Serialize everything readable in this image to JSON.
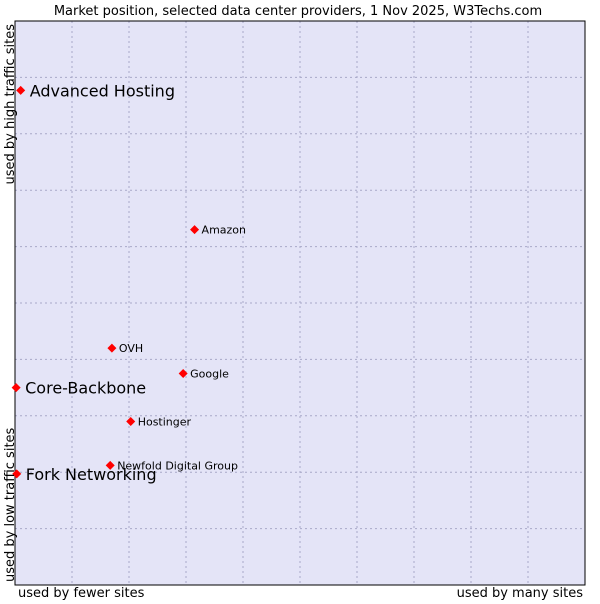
{
  "chart_data": {
    "type": "scatter",
    "title": "Market position, selected data center providers, 1 Nov 2025, W3Techs.com",
    "xlabel_left": "used by fewer sites",
    "xlabel_right": "used by many sites",
    "ylabel_bottom": "used by low traffic sites",
    "ylabel_top": "used by high traffic sites",
    "xlim": [
      0,
      100
    ],
    "ylim": [
      0,
      100
    ],
    "grid": true,
    "points": [
      {
        "label": "Advanced Hosting",
        "x": 1.0,
        "y": 87.7,
        "highlight": true
      },
      {
        "label": "Amazon",
        "x": 31.5,
        "y": 63.0,
        "highlight": false
      },
      {
        "label": "OVH",
        "x": 17.0,
        "y": 42.0,
        "highlight": false
      },
      {
        "label": "Google",
        "x": 29.5,
        "y": 37.5,
        "highlight": false
      },
      {
        "label": "Core-Backbone",
        "x": 0.2,
        "y": 35.0,
        "highlight": true
      },
      {
        "label": "Hostinger",
        "x": 20.3,
        "y": 29.0,
        "highlight": false
      },
      {
        "label": "Newfold Digital Group",
        "x": 16.7,
        "y": 21.2,
        "highlight": false
      },
      {
        "label": "Fork Networking",
        "x": 0.3,
        "y": 19.7,
        "highlight": true
      }
    ]
  },
  "colors": {
    "plot_background": "#e4e4f7",
    "grid": "#a8a8c8",
    "border": "#000000",
    "marker": "#ff0000",
    "text": "#000000"
  }
}
